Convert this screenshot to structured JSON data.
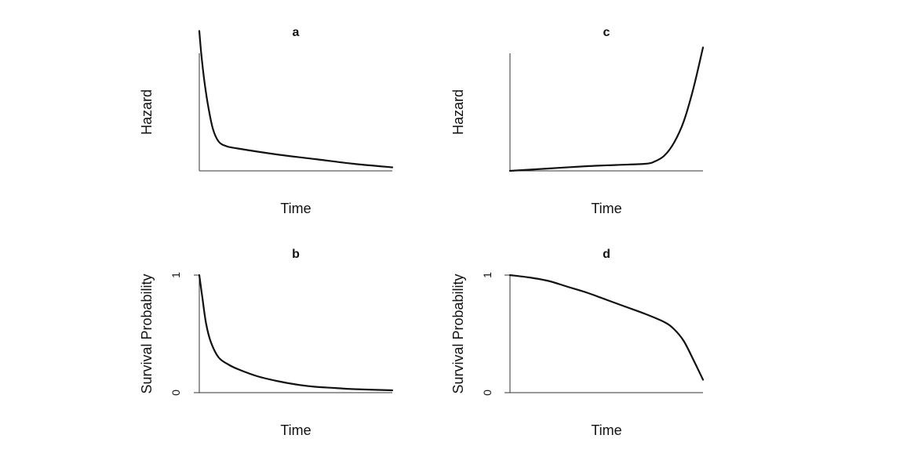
{
  "chart_data": [
    {
      "panel": "a",
      "type": "line",
      "title": "a",
      "xlabel": "Time",
      "ylabel": "Hazard",
      "xlim": [
        0,
        1
      ],
      "ylim": [
        0,
        1
      ],
      "yticks": [],
      "x": [
        0.0,
        0.01,
        0.025,
        0.045,
        0.07,
        0.1,
        0.14,
        0.2,
        0.4,
        0.6,
        0.8,
        1.0
      ],
      "values": [
        1.19,
        1.0,
        0.78,
        0.56,
        0.36,
        0.25,
        0.21,
        0.19,
        0.14,
        0.1,
        0.06,
        0.03
      ]
    },
    {
      "panel": "b",
      "type": "line",
      "title": "b",
      "xlabel": "Time",
      "ylabel": "Survival Probability",
      "xlim": [
        0,
        1
      ],
      "ylim": [
        0,
        1
      ],
      "yticks": [
        "0",
        "1"
      ],
      "x": [
        0.0,
        0.015,
        0.035,
        0.06,
        0.1,
        0.15,
        0.2,
        0.3,
        0.4,
        0.5,
        0.6,
        0.7,
        0.8,
        1.0
      ],
      "values": [
        1.0,
        0.82,
        0.59,
        0.43,
        0.3,
        0.24,
        0.2,
        0.14,
        0.1,
        0.07,
        0.05,
        0.04,
        0.03,
        0.02
      ]
    },
    {
      "panel": "c",
      "type": "line",
      "title": "c",
      "xlabel": "Time",
      "ylabel": "Hazard",
      "xlim": [
        0,
        1
      ],
      "ylim": [
        0,
        1
      ],
      "yticks": [],
      "x": [
        0.0,
        0.2,
        0.4,
        0.55,
        0.7,
        0.75,
        0.8,
        0.85,
        0.9,
        0.95,
        1.0
      ],
      "values": [
        0.0,
        0.02,
        0.04,
        0.05,
        0.06,
        0.08,
        0.13,
        0.24,
        0.42,
        0.7,
        1.05
      ]
    },
    {
      "panel": "d",
      "type": "line",
      "title": "d",
      "xlabel": "Time",
      "ylabel": "Survival Probability",
      "xlim": [
        0,
        1
      ],
      "ylim": [
        0,
        1
      ],
      "yticks": [
        "0",
        "1"
      ],
      "x": [
        0.0,
        0.1,
        0.2,
        0.3,
        0.4,
        0.5,
        0.6,
        0.7,
        0.8,
        0.85,
        0.9,
        0.95,
        1.0
      ],
      "values": [
        1.0,
        0.98,
        0.95,
        0.9,
        0.85,
        0.79,
        0.73,
        0.67,
        0.6,
        0.54,
        0.44,
        0.28,
        0.11
      ]
    }
  ]
}
